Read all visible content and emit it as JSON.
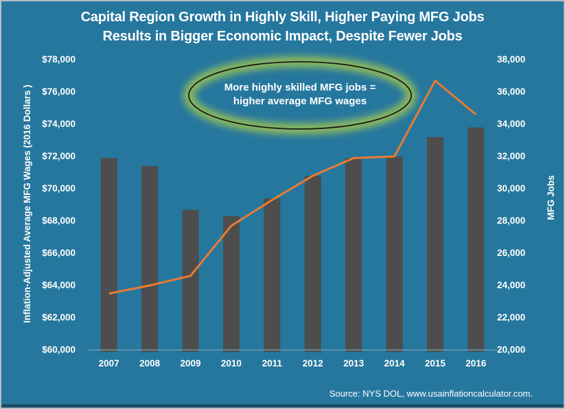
{
  "title": {
    "line1": "Capital Region Growth in Highly Skill, Higher Paying MFG Jobs",
    "line2": "Results in Bigger Economic Impact, Despite Fewer Jobs"
  },
  "annotation": {
    "line1": "More highly skilled MFG jobs =",
    "line2": "higher average MFG wages"
  },
  "source": "Source: NYS DOL, www.usainflationcalculator.com.",
  "colors": {
    "background": "#26779E",
    "bar": "#4D4D4D",
    "line": "#E97C30",
    "glow": "#9CC353",
    "ellipse_outline": "#1A1A1A",
    "text": "#FFFFFF",
    "axis_line": "#6F98B2",
    "bottom_strip": "#1B4E66"
  },
  "chart_data": {
    "type": "combo",
    "title": "Capital Region Growth in Highly Skill, Higher Paying MFG Jobs Results in Bigger Economic Impact, Despite Fewer Jobs",
    "categories": [
      "2007",
      "2008",
      "2009",
      "2010",
      "2011",
      "2012",
      "2013",
      "2014",
      "2015",
      "2016"
    ],
    "series": [
      {
        "name": "MFG Jobs",
        "type": "bar",
        "axis": "right",
        "color": "#4D4D4D",
        "values": [
          31900,
          31400,
          28700,
          28300,
          29400,
          30800,
          31900,
          32000,
          33200,
          33800
        ]
      },
      {
        "name": "Inflation-Adjusted Average MFG Wages (2016 Dollars)",
        "type": "line",
        "axis": "left",
        "color": "#E97C30",
        "values": [
          63500,
          64000,
          64600,
          67700,
          69300,
          70800,
          71900,
          72000,
          76700,
          74600
        ]
      }
    ],
    "left_axis": {
      "label": "Inflation-Adjusted Average MFG Wages  (2016 Dollars )",
      "range": [
        60000,
        78000
      ],
      "tick_step": 2000,
      "tick_labels_top_to_bottom": [
        "$78,000",
        "$76,000",
        "$74,000",
        "$72,000",
        "$70,000",
        "$68,000",
        "$66,000",
        "$64,000",
        "$62,000",
        "$60,000"
      ]
    },
    "right_axis": {
      "label": "MFG Jobs",
      "range": [
        20000,
        38000
      ],
      "tick_step": 2000,
      "tick_labels_top_to_bottom": [
        "38,000",
        "36,000",
        "34,000",
        "32,000",
        "30,000",
        "28,000",
        "26,000",
        "24,000",
        "22,000",
        "20,000"
      ]
    },
    "x_axis": {
      "label": "",
      "tick_labels": [
        "2007",
        "2008",
        "2009",
        "2010",
        "2011",
        "2012",
        "2013",
        "2014",
        "2015",
        "2016"
      ]
    },
    "grid": false,
    "legend": "none",
    "annotation_text": "More highly skilled MFG jobs = higher average MFG wages"
  }
}
